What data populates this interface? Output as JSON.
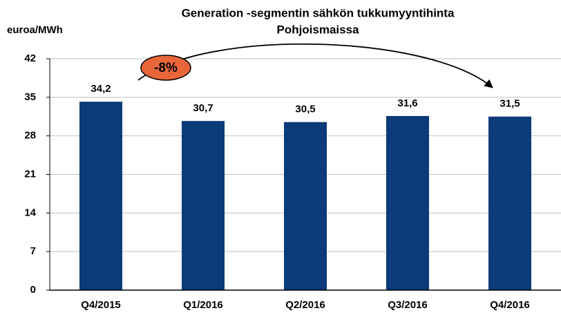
{
  "chart_data": {
    "type": "bar",
    "title": [
      "Generation -segmentin sähkön tukkumyyntihinta",
      "Pohjoismaissa"
    ],
    "y_label": "euroa/MWh",
    "annotation": "-8%",
    "categories": [
      "Q4/2015",
      "Q1/2016",
      "Q2/2016",
      "Q3/2016",
      "Q4/2016"
    ],
    "values": [
      34.2,
      30.7,
      30.5,
      31.6,
      31.5
    ],
    "value_labels": [
      "34,2",
      "30,7",
      "30,5",
      "31,6",
      "31,5"
    ],
    "color": "#0b3b78",
    "ylim": [
      0,
      42
    ],
    "yticks": [
      0,
      7,
      14,
      21,
      28,
      35,
      42
    ],
    "grid": true
  }
}
